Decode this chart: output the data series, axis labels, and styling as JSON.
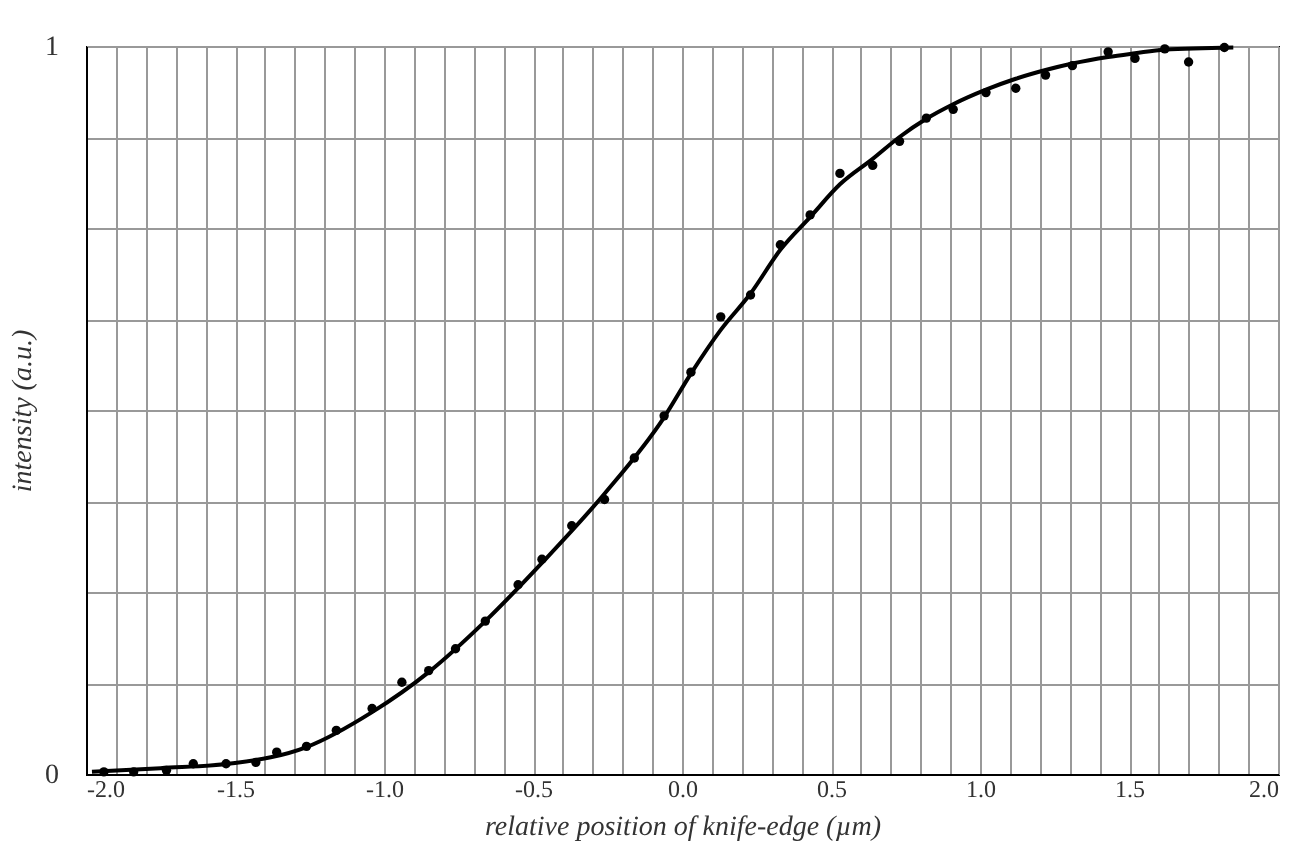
{
  "chart_data": {
    "type": "scatter",
    "xlabel": "relative position of knife-edge  (µm)",
    "ylabel": "intensity (a.u.)",
    "xlim": [
      -2,
      2
    ],
    "ylim": [
      0,
      1
    ],
    "xticks": [
      {
        "value": -2,
        "label": "-2.0"
      },
      {
        "value": -1.9,
        "label": null
      },
      {
        "value": -1.8,
        "label": null
      },
      {
        "value": -1.7,
        "label": null
      },
      {
        "value": -1.6,
        "label": null
      },
      {
        "value": -1.5,
        "label": "-1.5"
      },
      {
        "value": -1.4,
        "label": null
      },
      {
        "value": -1.3,
        "label": null
      },
      {
        "value": -1.2,
        "label": null
      },
      {
        "value": -1.1,
        "label": null
      },
      {
        "value": -1,
        "label": "-1.0"
      },
      {
        "value": -0.9,
        "label": null
      },
      {
        "value": -0.8,
        "label": null
      },
      {
        "value": -0.7,
        "label": null
      },
      {
        "value": -0.6,
        "label": null
      },
      {
        "value": -0.5,
        "label": "-0.5"
      },
      {
        "value": -0.4,
        "label": null
      },
      {
        "value": -0.3,
        "label": null
      },
      {
        "value": -0.2,
        "label": null
      },
      {
        "value": -0.1,
        "label": null
      },
      {
        "value": 0,
        "label": "0.0"
      },
      {
        "value": 0.1,
        "label": null
      },
      {
        "value": 0.2,
        "label": null
      },
      {
        "value": 0.3,
        "label": null
      },
      {
        "value": 0.4,
        "label": null
      },
      {
        "value": 0.5,
        "label": "0.5"
      },
      {
        "value": 0.6,
        "label": null
      },
      {
        "value": 0.7,
        "label": null
      },
      {
        "value": 0.8,
        "label": null
      },
      {
        "value": 0.9,
        "label": null
      },
      {
        "value": 1,
        "label": "1.0"
      },
      {
        "value": 1.1,
        "label": null
      },
      {
        "value": 1.2,
        "label": null
      },
      {
        "value": 1.3,
        "label": null
      },
      {
        "value": 1.4,
        "label": null
      },
      {
        "value": 1.5,
        "label": "1.5"
      },
      {
        "value": 1.6,
        "label": null
      },
      {
        "value": 1.7,
        "label": null
      },
      {
        "value": 1.8,
        "label": null
      },
      {
        "value": 1.9,
        "label": null
      },
      {
        "value": 2,
        "label": "2.0"
      }
    ],
    "yticks": [
      0,
      {
        "value": 0.125,
        "label": null
      },
      {
        "value": 0.25,
        "label": null
      },
      {
        "value": 0.375,
        "label": null
      },
      {
        "value": 0.5,
        "label": null
      },
      {
        "value": 0.625,
        "label": null
      },
      {
        "value": 0.75,
        "label": null
      },
      {
        "value": 0.875,
        "label": null
      },
      1
    ],
    "grid": true,
    "series": [
      {
        "color": "#000000",
        "marker": "circle",
        "x": [
          -1.94,
          -1.84,
          -1.73,
          -1.64,
          -1.53,
          -1.43,
          -1.36,
          -1.26,
          -1.16,
          -1.04,
          -0.94,
          -0.85,
          -0.76,
          -0.66,
          -0.55,
          -0.47,
          -0.37,
          -0.26,
          -0.16,
          -0.06,
          0.03,
          0.13,
          0.23,
          0.33,
          0.43,
          0.53,
          0.64,
          0.73,
          0.82,
          0.91,
          1.02,
          1.12,
          1.22,
          1.31,
          1.43,
          1.52,
          1.62,
          1.7,
          1.82
        ],
        "values": [
          0.003,
          0.003,
          0.005,
          0.014,
          0.014,
          0.016,
          0.03,
          0.038,
          0.06,
          0.09,
          0.126,
          0.142,
          0.172,
          0.21,
          0.26,
          0.295,
          0.341,
          0.377,
          0.434,
          0.492,
          0.552,
          0.628,
          0.658,
          0.727,
          0.768,
          0.825,
          0.836,
          0.869,
          0.901,
          0.913,
          0.936,
          0.942,
          0.96,
          0.973,
          0.992,
          0.983,
          0.996,
          0.978,
          0.998
        ]
      },
      {
        "type": "line",
        "color": "#000000",
        "marker": "none",
        "line_style": "solid",
        "x": [
          -1.98,
          -1.75,
          -1.5,
          -1.26,
          -1.04,
          -0.85,
          -0.66,
          -0.47,
          -0.26,
          -0.06,
          0.03,
          0.13,
          0.23,
          0.33,
          0.43,
          0.53,
          0.64,
          0.73,
          0.82,
          0.91,
          1.02,
          1.12,
          1.22,
          1.31,
          1.43,
          1.52,
          1.62,
          1.85
        ],
        "values": [
          0.003,
          0.008,
          0.015,
          0.037,
          0.085,
          0.14,
          0.21,
          0.29,
          0.385,
          0.49,
          0.55,
          0.61,
          0.66,
          0.72,
          0.765,
          0.81,
          0.845,
          0.875,
          0.9,
          0.92,
          0.94,
          0.955,
          0.967,
          0.976,
          0.985,
          0.99,
          0.995,
          0.998
        ]
      }
    ]
  }
}
